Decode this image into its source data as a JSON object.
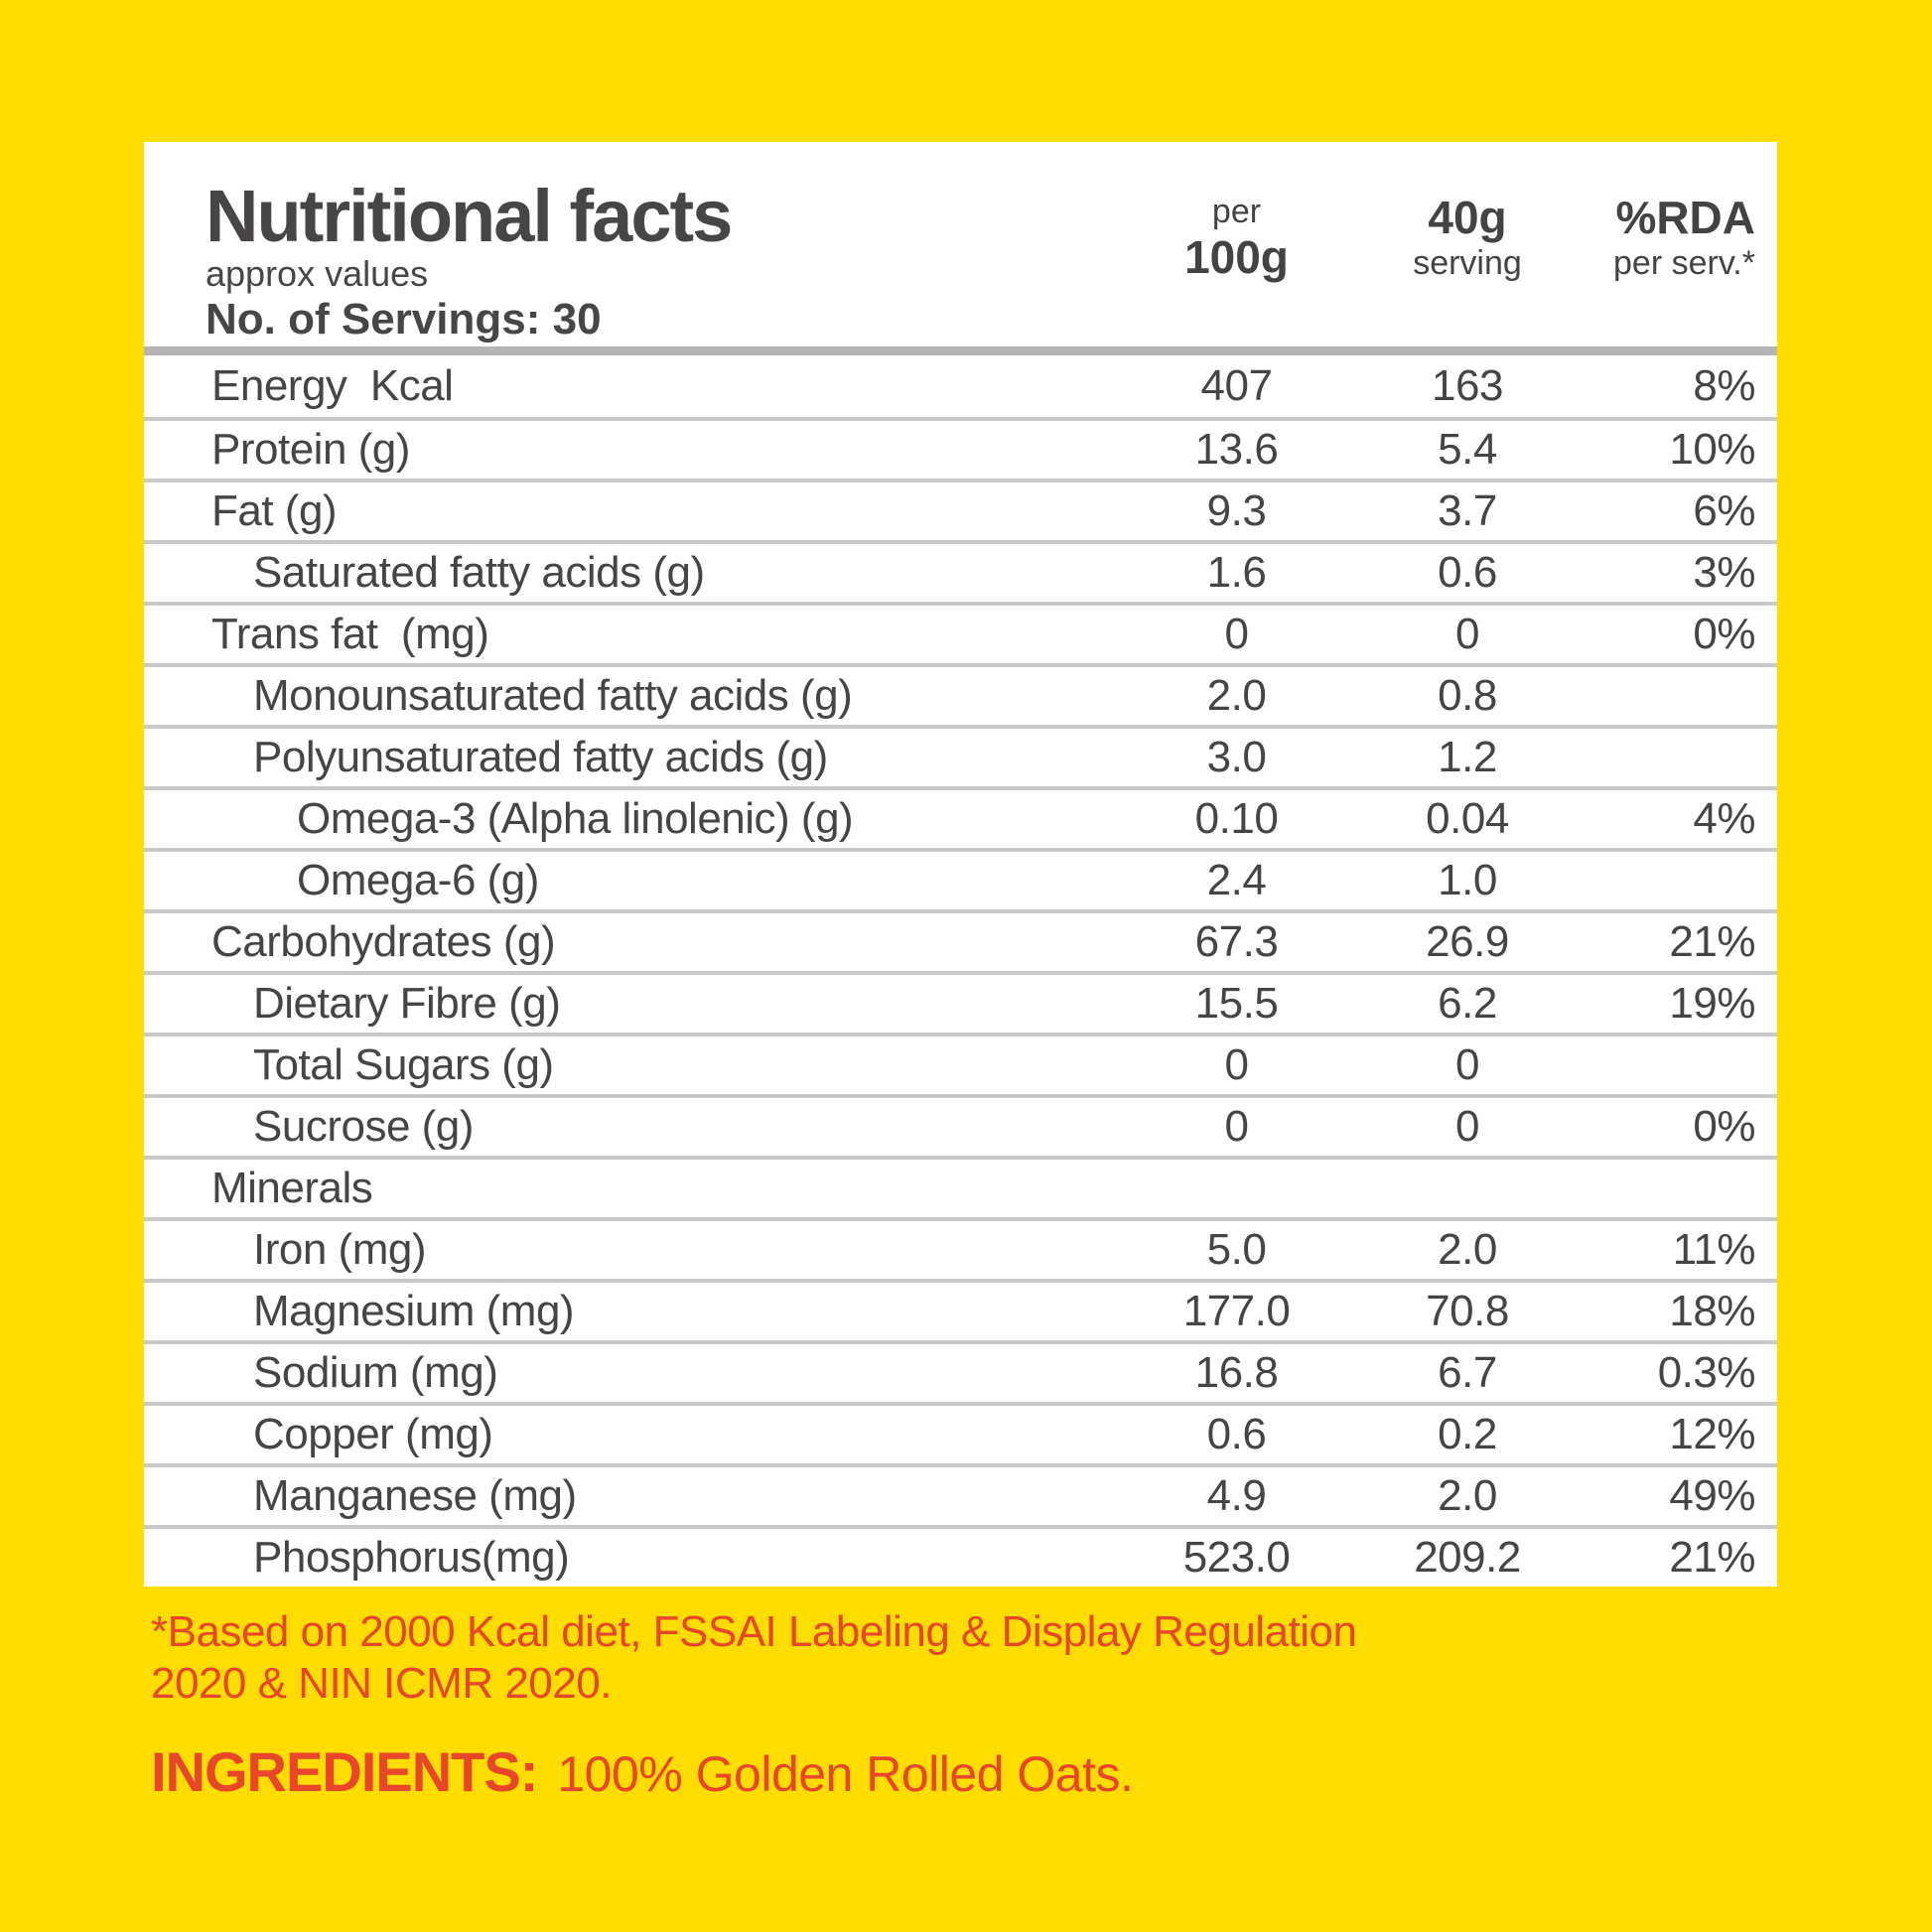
{
  "colors": {
    "background_yellow": "#FFDD00",
    "card_white": "#FFFFFF",
    "text_dark_gray": "#454545",
    "separator_gray": "#C9C9C9",
    "header_bar_gray": "#B4B4B4",
    "accent_red": "#E8452A"
  },
  "header": {
    "title": "Nutritional facts",
    "subtitle": "approx values",
    "servings": "No. of Servings: 30",
    "columns": [
      {
        "line1": "per",
        "line2": "100g"
      },
      {
        "line1": "40g",
        "line2": "serving"
      },
      {
        "line1": "%RDA",
        "line2": "per serv.*"
      }
    ]
  },
  "table": {
    "rows": [
      {
        "label": "Energy  Kcal",
        "per100g": "407",
        "serving": "163",
        "rda": "8%"
      },
      {
        "label": "Protein (g)",
        "per100g": "13.6",
        "serving": "5.4",
        "rda": "10%"
      },
      {
        "label": "Fat (g)",
        "per100g": "9.3",
        "serving": "3.7",
        "rda": "6%"
      },
      {
        "label": "Saturated fatty acids (g)",
        "per100g": "1.6",
        "serving": "0.6",
        "rda": "3%"
      },
      {
        "label": "Trans fat  (mg)",
        "per100g": "0",
        "serving": "0",
        "rda": "0%"
      },
      {
        "label": "Monounsaturated fatty acids (g)",
        "per100g": "2.0",
        "serving": "0.8",
        "rda": ""
      },
      {
        "label": "Polyunsaturated fatty acids (g)",
        "per100g": "3.0",
        "serving": "1.2",
        "rda": ""
      },
      {
        "label": "Omega-3 (Alpha linolenic) (g)",
        "per100g": "0.10",
        "serving": "0.04",
        "rda": "4%"
      },
      {
        "label": "Omega-6 (g)",
        "per100g": "2.4",
        "serving": "1.0",
        "rda": ""
      },
      {
        "label": "Carbohydrates (g)",
        "per100g": "67.3",
        "serving": "26.9",
        "rda": "21%"
      },
      {
        "label": "Dietary Fibre (g)",
        "per100g": "15.5",
        "serving": "6.2",
        "rda": "19%"
      },
      {
        "label": "Total Sugars (g)",
        "per100g": "0",
        "serving": "0",
        "rda": ""
      },
      {
        "label": "Sucrose (g)",
        "per100g": "0",
        "serving": "0",
        "rda": "0%"
      },
      {
        "label": "Minerals",
        "per100g": "",
        "serving": "",
        "rda": ""
      },
      {
        "label": "Iron (mg)",
        "per100g": "5.0",
        "serving": "2.0",
        "rda": "11%"
      },
      {
        "label": "Magnesium (mg)",
        "per100g": "177.0",
        "serving": "70.8",
        "rda": "18%"
      },
      {
        "label": "Sodium (mg)",
        "per100g": "16.8",
        "serving": "6.7",
        "rda": "0.3%"
      },
      {
        "label": "Copper (mg)",
        "per100g": "0.6",
        "serving": "0.2",
        "rda": "12%"
      },
      {
        "label": "Manganese (mg)",
        "per100g": "4.9",
        "serving": "2.0",
        "rda": "49%"
      },
      {
        "label": "Phosphorus(mg)",
        "per100g": "523.0",
        "serving": "209.2",
        "rda": "21%"
      }
    ]
  },
  "footnote": {
    "line1": "*Based on 2000 Kcal diet, FSSAI Labeling & Display Regulation",
    "line2": "2020 & NIN ICMR 2020."
  },
  "ingredients": {
    "label": "INGREDIENTS:",
    "text": "100% Golden Rolled Oats."
  }
}
